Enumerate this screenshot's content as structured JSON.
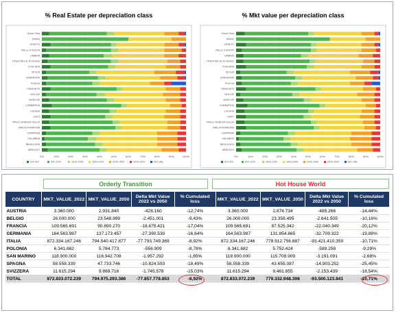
{
  "chart_data": [
    {
      "type": "stacked-bar-horizontal",
      "title": "% Real Estate per depreciation class",
      "categories": [
        "Grand Total",
        "(blank)",
        "VENETO",
        "VALLE D'AOSTA",
        "UMBRIA",
        "TRENTINO ALTO ADIGE",
        "TOSCANA",
        "SICILIA",
        "SARDEGNA",
        "PUGLIA",
        "PIEMONTE",
        "MOLISE",
        "MARCHE",
        "LOMBARDIA",
        "LIGURIA",
        "LAZIO",
        "FRIULI VENEZIA GIULIA",
        "EMILIA ROMAGNA",
        "CAMPANIA",
        "CALABRIA",
        "BASILICATA",
        "ABRUZZO"
      ],
      "series": [
        {
          "name": "0%-5%",
          "color": "#2e7d32",
          "values": [
            5,
            0,
            6,
            3,
            5,
            4,
            6,
            3,
            4,
            3,
            6,
            3,
            5,
            7,
            5,
            6,
            5,
            6,
            3,
            2,
            3,
            4
          ]
        },
        {
          "name": "5%-10%",
          "color": "#4cb84c",
          "values": [
            40,
            60,
            42,
            45,
            38,
            44,
            40,
            30,
            35,
            32,
            46,
            35,
            40,
            48,
            42,
            38,
            44,
            45,
            32,
            30,
            34,
            36
          ]
        },
        {
          "name": "10%-15%",
          "color": "#a6d96a",
          "values": [
            5,
            0,
            4,
            5,
            6,
            5,
            5,
            5,
            5,
            5,
            4,
            6,
            5,
            4,
            5,
            5,
            5,
            4,
            5,
            6,
            5,
            5
          ]
        },
        {
          "name": "15%-20%",
          "color": "#f2d43b",
          "values": [
            35,
            30,
            33,
            32,
            36,
            34,
            35,
            40,
            38,
            35,
            30,
            40,
            36,
            30,
            34,
            36,
            33,
            32,
            40,
            42,
            38,
            38
          ]
        },
        {
          "name": "20%-25%",
          "color": "#f4a020",
          "values": [
            10,
            10,
            10,
            12,
            10,
            9,
            10,
            15,
            12,
            10,
            10,
            12,
            10,
            8,
            10,
            11,
            9,
            9,
            14,
            14,
            14,
            12
          ]
        },
        {
          "name": "25%-30%",
          "color": "#e53935",
          "values": [
            4,
            0,
            4,
            3,
            5,
            4,
            4,
            6,
            5,
            5,
            4,
            4,
            4,
            3,
            4,
            4,
            4,
            4,
            6,
            6,
            6,
            5
          ]
        },
        {
          "name": "NO VAL",
          "color": "#1e5bd8",
          "values": [
            1,
            0,
            1,
            0,
            0,
            0,
            0,
            1,
            1,
            10,
            0,
            0,
            0,
            0,
            0,
            0,
            0,
            0,
            0,
            0,
            0,
            0
          ]
        }
      ],
      "xlim": [
        0,
        100
      ],
      "xticks": [
        {
          "value": 0,
          "label": "0%"
        },
        {
          "value": 10,
          "label": "10%"
        },
        {
          "value": 20,
          "label": "20%"
        },
        {
          "value": 30,
          "label": "30%"
        },
        {
          "value": 40,
          "label": "40%"
        },
        {
          "value": 50,
          "label": "50%"
        },
        {
          "value": 60,
          "label": "60%"
        },
        {
          "value": 70,
          "label": "70%"
        },
        {
          "value": 80,
          "label": "80%"
        },
        {
          "value": 90,
          "label": "90%"
        },
        {
          "value": 100,
          "label": "100%"
        }
      ],
      "grid": true,
      "legend": "bottom"
    },
    {
      "type": "stacked-bar-horizontal",
      "title": "% Mkt value per depreciation class",
      "categories": [
        "Grand Total",
        "(blank)",
        "VENETO",
        "VALLE D'AOSTA",
        "UMBRIA",
        "TRENTINO ALTO ADIGE",
        "TOSCANA",
        "SICILIA",
        "SARDEGNA",
        "PUGLIA",
        "PIEMONTE",
        "MOLISE",
        "MARCHE",
        "LOMBARDIA",
        "LIGURIA",
        "LAZIO",
        "FRIULI VENEZIA GIULIA",
        "EMILIA ROMAGNA",
        "CAMPANIA",
        "CALABRIA",
        "BASILICATA",
        "ABRUZZO"
      ],
      "series": [
        {
          "name": "0%-5%",
          "color": "#2e7d32",
          "values": [
            6,
            0,
            7,
            4,
            5,
            5,
            7,
            3,
            4,
            4,
            7,
            3,
            5,
            8,
            6,
            7,
            6,
            7,
            3,
            2,
            3,
            4
          ]
        },
        {
          "name": "5%-10%",
          "color": "#4cb84c",
          "values": [
            44,
            65,
            45,
            48,
            40,
            46,
            42,
            32,
            37,
            34,
            48,
            36,
            42,
            50,
            44,
            40,
            46,
            47,
            33,
            31,
            35,
            38
          ]
        },
        {
          "name": "10%-15%",
          "color": "#a6d96a",
          "values": [
            4,
            0,
            4,
            4,
            5,
            4,
            5,
            5,
            5,
            5,
            4,
            5,
            5,
            4,
            4,
            5,
            4,
            4,
            5,
            5,
            5,
            5
          ]
        },
        {
          "name": "15%-20%",
          "color": "#f2d43b",
          "values": [
            33,
            25,
            31,
            31,
            35,
            33,
            33,
            39,
            37,
            36,
            29,
            40,
            35,
            28,
            33,
            34,
            32,
            31,
            39,
            41,
            37,
            37
          ]
        },
        {
          "name": "20%-25%",
          "color": "#f4a020",
          "values": [
            9,
            10,
            9,
            10,
            10,
            8,
            9,
            14,
            12,
            10,
            9,
            12,
            9,
            7,
            9,
            10,
            8,
            8,
            14,
            15,
            14,
            11
          ]
        },
        {
          "name": "25%-30%",
          "color": "#e53935",
          "values": [
            3,
            0,
            3,
            3,
            5,
            4,
            4,
            6,
            4,
            5,
            3,
            4,
            4,
            3,
            4,
            4,
            4,
            3,
            6,
            6,
            6,
            5
          ]
        },
        {
          "name": "NO VAL",
          "color": "#1e5bd8",
          "values": [
            1,
            0,
            1,
            0,
            0,
            0,
            0,
            1,
            1,
            6,
            0,
            0,
            0,
            0,
            0,
            0,
            0,
            0,
            0,
            0,
            0,
            0
          ]
        }
      ],
      "xlim": [
        0,
        100
      ],
      "xticks": [
        {
          "value": 0,
          "label": "0%"
        },
        {
          "value": 10,
          "label": "10%"
        },
        {
          "value": 20,
          "label": "20%"
        },
        {
          "value": 30,
          "label": "30%"
        },
        {
          "value": 40,
          "label": "40%"
        },
        {
          "value": 50,
          "label": "50%"
        },
        {
          "value": 60,
          "label": "60%"
        },
        {
          "value": 70,
          "label": "70%"
        },
        {
          "value": 80,
          "label": "80%"
        },
        {
          "value": 90,
          "label": "90%"
        },
        {
          "value": 100,
          "label": "100%"
        }
      ],
      "grid": true,
      "legend": "bottom"
    }
  ],
  "table": {
    "groups": [
      "Orderly Transition",
      "Hot House World"
    ],
    "columns": [
      "COUNTRY",
      "MKT_VALUE_2022",
      "MKT_VALUE_2050",
      "Delta Mkt Value 2022 vs 2050",
      "% Cumulated loss",
      "MKT_VALUE_2022",
      "MKT_VALUE_2050",
      "Delta Mkt Value 2022 vs 2050",
      "% Cumulated loss"
    ],
    "rows": [
      [
        "AUSTRIA",
        "3.360.000",
        "2.931.840",
        "-428.160",
        "-12,74%",
        "3.360.000",
        "2.874.734",
        "-485.266",
        "-14,44%"
      ],
      [
        "BELGIO",
        "26.000.000",
        "23.548.999",
        "-2.451.001",
        "-9,43%",
        "26.000.000",
        "23.358.495",
        "-2.641.505",
        "-10,16%"
      ],
      [
        "FRANCIA",
        "109.565.691",
        "90.890.270",
        "-18.675.421",
        "-17,04%",
        "109.565.691",
        "87.525.342",
        "-22.040.349",
        "-20,12%"
      ],
      [
        "GERMANIA",
        "164.563.987",
        "137.173.457",
        "-27.390.530",
        "-16,64%",
        "164.563.987",
        "131.854.665",
        "-32.709.322",
        "-19,88%"
      ],
      [
        "ITALIA",
        "872.334.167.246",
        "794.540.417.877",
        "-77.793.749.369",
        "-8,92%",
        "872.334.167.246",
        "778.912.756.887",
        "-93.421.410.359",
        "-10,71%"
      ],
      [
        "POLONIA",
        "6.341.682",
        "5.784.773",
        "-556.909",
        "-8,78%",
        "6.341.682",
        "5.752.424",
        "-589.258",
        "-9,29%"
      ],
      [
        "SAN MARINO",
        "118.900.000",
        "116.942.708",
        "-1.957.292",
        "-1,65%",
        "118.900.000",
        "115.708.909",
        "-3.191.091",
        "-2,68%"
      ],
      [
        "SPAGNA",
        "58.558.339",
        "47.733.746",
        "-10.824.593",
        "-18,49%",
        "58.558.339",
        "43.655.087",
        "-14.903.252",
        "-25,45%"
      ],
      [
        "SVIZZERA",
        "11.615.294",
        "9.869.716",
        "-1.745.578",
        "-15,03%",
        "11.615.294",
        "9.461.855",
        "-2.153.439",
        "-18,54%"
      ],
      [
        "TOTAL",
        "872.833.072.239",
        "794.975.293.386",
        "-77.857.778.853",
        "-8,92%",
        "872.833.072.239",
        "779.332.948.398",
        "-93.500.123.841",
        "-10,71%"
      ]
    ]
  }
}
